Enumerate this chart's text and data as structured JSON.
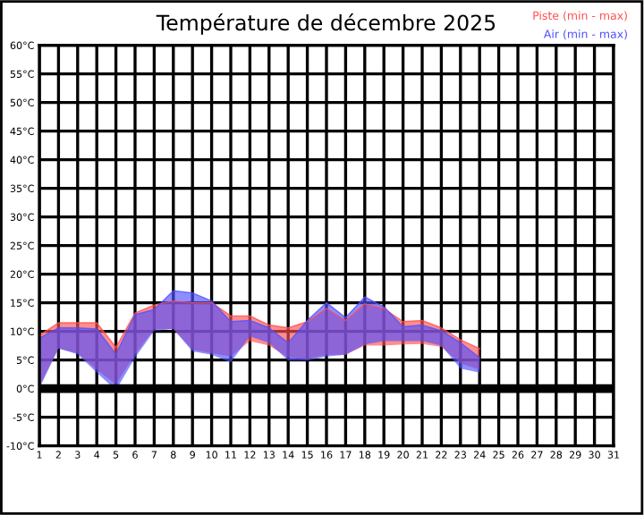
{
  "chart_data": {
    "type": "line",
    "title": "Température de décembre 2025",
    "x": [
      1,
      2,
      3,
      4,
      5,
      6,
      7,
      8,
      9,
      10,
      11,
      12,
      13,
      14,
      15,
      16,
      17,
      18,
      19,
      20,
      21,
      22,
      23,
      24
    ],
    "series": [
      {
        "name": "Piste (min - max)",
        "color": "#ff5050",
        "lower": [
          0.5,
          7,
          6.2,
          3.3,
          0.7,
          6,
          10.4,
          10.4,
          6.8,
          6.2,
          5.6,
          8.3,
          7.5,
          5.4,
          5.1,
          5.9,
          5.9,
          7.5,
          7.5,
          7.7,
          7.8,
          7.3,
          4.4,
          3.3
        ],
        "values": [
          9.3,
          11.5,
          11.5,
          11.5,
          7.2,
          13.2,
          14.6,
          15.3,
          15,
          15,
          12.7,
          12.7,
          11.1,
          10.6,
          11.7,
          14,
          11.9,
          14.8,
          14,
          11.7,
          11.9,
          10.6,
          8.5,
          7
        ],
        "upper": [
          9.3,
          11.5,
          11.5,
          11.5,
          7.2,
          13.2,
          14.6,
          15.3,
          15,
          15,
          12.7,
          12.7,
          11.1,
          10.6,
          11.7,
          14,
          11.9,
          14.8,
          14,
          11.7,
          11.9,
          10.6,
          8.5,
          7
        ]
      },
      {
        "name": "Air (min - max)",
        "color": "#5050ff",
        "lower": [
          0,
          7,
          6,
          2.8,
          -0.3,
          5.4,
          10.1,
          10.4,
          6.5,
          5.9,
          4.6,
          9.1,
          8,
          4.9,
          4.9,
          5.6,
          5.9,
          7.7,
          8.3,
          8.3,
          8.3,
          7.5,
          3.5,
          2.8
        ],
        "values": [
          8.8,
          10.6,
          10.6,
          10.4,
          6,
          12.9,
          13.8,
          17.1,
          16.7,
          15.3,
          11.7,
          11.9,
          10.6,
          8,
          11.9,
          15,
          12.4,
          16,
          14.3,
          10.8,
          11.1,
          10.1,
          8,
          5.4
        ],
        "upper": [
          8.8,
          10.6,
          10.6,
          10.4,
          6,
          12.9,
          13.8,
          17.1,
          16.7,
          15.3,
          11.7,
          11.9,
          10.6,
          8,
          11.9,
          15,
          12.4,
          16,
          14.3,
          10.8,
          11.1,
          10.1,
          8,
          5.4
        ]
      }
    ],
    "xlim": [
      1,
      31
    ],
    "xticks": [
      1,
      2,
      3,
      4,
      5,
      6,
      7,
      8,
      9,
      10,
      11,
      12,
      13,
      14,
      15,
      16,
      17,
      18,
      19,
      20,
      21,
      22,
      23,
      24,
      25,
      26,
      27,
      28,
      29,
      30,
      31
    ],
    "ylim": [
      -10,
      60
    ],
    "yticks": [
      {
        "value": -10,
        "label": "-10°C"
      },
      {
        "value": -5,
        "label": "-5°C"
      },
      {
        "value": 0,
        "label": "0°C"
      },
      {
        "value": 5,
        "label": "5°C"
      },
      {
        "value": 10,
        "label": "10°C"
      },
      {
        "value": 15,
        "label": "15°C"
      },
      {
        "value": 20,
        "label": "20°C"
      },
      {
        "value": 25,
        "label": "25°C"
      },
      {
        "value": 30,
        "label": "30°C"
      },
      {
        "value": 35,
        "label": "35°C"
      },
      {
        "value": 40,
        "label": "40°C"
      },
      {
        "value": 45,
        "label": "45°C"
      },
      {
        "value": 50,
        "label": "50°C"
      },
      {
        "value": 55,
        "label": "55°C"
      },
      {
        "value": 60,
        "label": "60°C"
      }
    ],
    "ref_lines": [
      {
        "axis": "y",
        "value": 0,
        "color": "#000000"
      }
    ],
    "grid": true,
    "legend": "top right"
  }
}
